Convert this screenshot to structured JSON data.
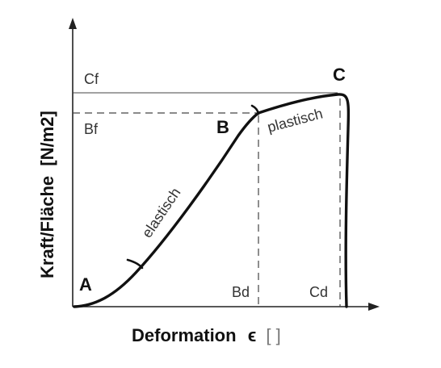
{
  "axes": {
    "y_label": "Kraft/Fläche",
    "y_unit": "[N/m2]",
    "x_label": "Deformation",
    "x_symbol": "ϵ",
    "x_unit": "[   ]"
  },
  "points": {
    "a": "A",
    "b": "B",
    "c": "C"
  },
  "levels": {
    "cf": "Cf",
    "bf": "Bf",
    "bd": "Bd",
    "cd": "Cd"
  },
  "regions": {
    "elastic": "elastisch",
    "plastic": "plastisch"
  },
  "colors": {
    "curve": "#111111",
    "axis": "#222222",
    "guide": "#333333"
  }
}
